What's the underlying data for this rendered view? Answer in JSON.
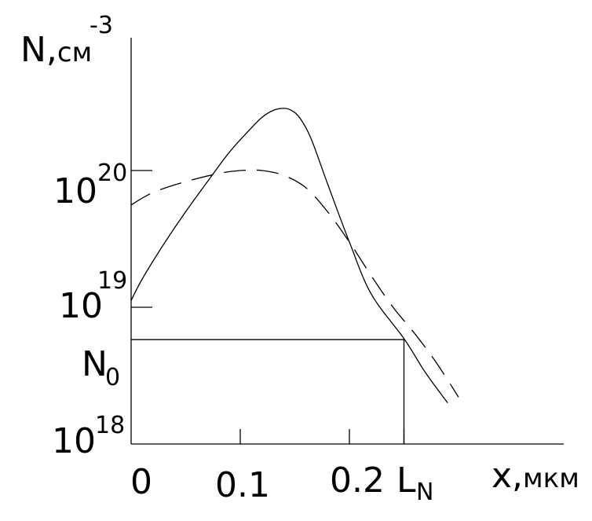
{
  "chart_data": {
    "type": "line",
    "title": "",
    "y_scale": "log",
    "xlim": [
      0,
      0.3
    ],
    "ylim": [
      1e+18,
      1e+21
    ],
    "x_ticks": [
      0.1,
      0.2,
      0.25
    ],
    "y_ticks": [
      1e+19,
      1e+20
    ],
    "axis_labels": {
      "x_name": "x,",
      "x_unit": "мкм",
      "y_name": "N,",
      "y_unit": "см",
      "y_unit_exp": "-3"
    },
    "tick_labels": {
      "x0": "0",
      "x1": "0.1",
      "x2": "0.2",
      "x3_main": "L",
      "x3_sub": "N",
      "y18_base": "10",
      "y18_exp": "18",
      "y19_base": "10",
      "y19_exp": "19",
      "y20_base": "10",
      "y20_exp": "20",
      "n0_main": "N",
      "n0_sub": "0"
    },
    "reference": {
      "N0": 5.8e+18,
      "LN": 0.25
    },
    "series": [
      {
        "style": "solid",
        "x": [
          0.0,
          0.01,
          0.03,
          0.05,
          0.07,
          0.09,
          0.11,
          0.12,
          0.13,
          0.14,
          0.147,
          0.155,
          0.165,
          0.18,
          0.2,
          0.22,
          0.25,
          0.27,
          0.29
        ],
        "y": [
          1.12e+19,
          1.6e+19,
          2.9e+19,
          5e+19,
          8.3e+19,
          1.36e+20,
          2.04e+20,
          2.45e+20,
          2.75e+20,
          2.85e+20,
          2.75e+20,
          2.4e+20,
          1.7e+20,
          8e+19,
          3e+19,
          1.25e+19,
          5.9e+18,
          3.3e+18,
          2e+18
        ]
      },
      {
        "style": "dashed",
        "x": [
          0.0,
          0.02,
          0.05,
          0.08,
          0.1,
          0.12,
          0.14,
          0.16,
          0.18,
          0.2,
          0.22,
          0.24,
          0.26,
          0.28,
          0.3
        ],
        "y": [
          5.6e+19,
          6.9e+19,
          8.3e+19,
          9.5e+19,
          1e+20,
          1e+20,
          9.2e+19,
          7.5e+19,
          5e+19,
          3e+19,
          1.7e+19,
          1e+19,
          6.4e+18,
          3.9e+18,
          2.2e+18
        ]
      }
    ]
  }
}
